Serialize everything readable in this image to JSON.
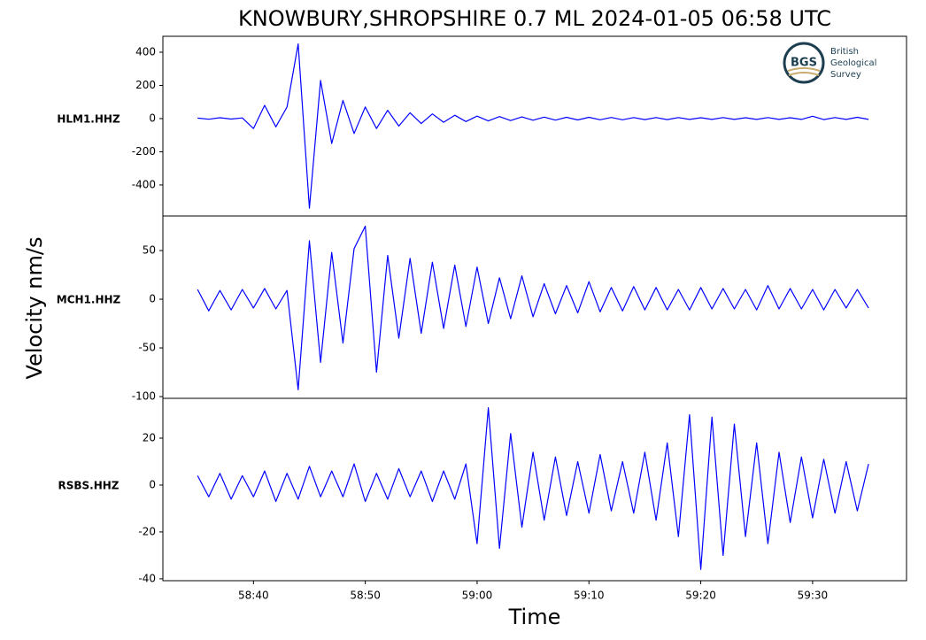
{
  "figure": {
    "title": "KNOWBURY,SHROPSHIRE 0.7 ML   2024-01-05 06:58 UTC",
    "xlabel": "Time",
    "ylabel": "Velocity nm/s",
    "logo": {
      "mark": "BGS",
      "lines": [
        "British",
        "Geological",
        "Survey"
      ]
    }
  },
  "chart_data": [
    {
      "type": "line",
      "name": "HLM1.HHZ",
      "color": "#0000ff",
      "x": [
        35,
        36,
        37,
        38,
        39,
        40,
        41,
        42,
        43,
        44,
        45,
        46,
        47,
        48,
        49,
        50,
        51,
        52,
        53,
        54,
        55,
        56,
        57,
        58,
        59,
        60,
        61,
        62,
        63,
        64,
        65,
        66,
        67,
        68,
        69,
        70,
        71,
        72,
        73,
        74,
        75,
        76,
        77,
        78,
        79,
        80,
        81,
        82,
        83,
        84,
        85,
        86,
        87,
        88,
        89,
        90,
        91,
        92,
        93,
        94,
        95
      ],
      "values": [
        3,
        -4,
        5,
        -3,
        4,
        -60,
        80,
        -50,
        70,
        450,
        -540,
        230,
        -150,
        110,
        -90,
        70,
        -60,
        50,
        -45,
        35,
        -30,
        28,
        -22,
        20,
        -18,
        15,
        -14,
        12,
        -12,
        10,
        -10,
        9,
        -9,
        8,
        -8,
        8,
        -7,
        7,
        -7,
        6,
        -6,
        6,
        -6,
        6,
        -5,
        5,
        -5,
        6,
        -5,
        5,
        -5,
        6,
        -5,
        5,
        -5,
        14,
        -6,
        6,
        -5,
        8,
        -5
      ],
      "xlim": [
        31.9,
        98.4
      ],
      "ylim": [
        -587,
        496
      ],
      "yticks": [
        400,
        200,
        0,
        -200,
        -400
      ]
    },
    {
      "type": "line",
      "name": "MCH1.HHZ",
      "color": "#0000ff",
      "x": [
        35,
        36,
        37,
        38,
        39,
        40,
        41,
        42,
        43,
        44,
        45,
        46,
        47,
        48,
        49,
        50,
        51,
        52,
        53,
        54,
        55,
        56,
        57,
        58,
        59,
        60,
        61,
        62,
        63,
        64,
        65,
        66,
        67,
        68,
        69,
        70,
        71,
        72,
        73,
        74,
        75,
        76,
        77,
        78,
        79,
        80,
        81,
        82,
        83,
        84,
        85,
        86,
        87,
        88,
        89,
        90,
        91,
        92,
        93,
        94,
        95
      ],
      "values": [
        10,
        -12,
        9,
        -11,
        10,
        -9,
        11,
        -10,
        9,
        -93,
        60,
        -65,
        48,
        -45,
        52,
        75,
        -75,
        45,
        -40,
        42,
        -35,
        38,
        -30,
        35,
        -28,
        33,
        -25,
        22,
        -20,
        24,
        -18,
        16,
        -15,
        14,
        -14,
        18,
        -13,
        12,
        -12,
        13,
        -11,
        12,
        -11,
        10,
        -11,
        12,
        -10,
        11,
        -10,
        10,
        -11,
        14,
        -10,
        11,
        -10,
        10,
        -11,
        10,
        -9,
        10,
        -9
      ],
      "xlim": [
        31.9,
        98.4
      ],
      "ylim": [
        -101.8,
        85.5
      ],
      "yticks": [
        50,
        0,
        -50,
        -100
      ]
    },
    {
      "type": "line",
      "name": "RSBS.HHZ",
      "color": "#0000ff",
      "x": [
        35,
        36,
        37,
        38,
        39,
        40,
        41,
        42,
        43,
        44,
        45,
        46,
        47,
        48,
        49,
        50,
        51,
        52,
        53,
        54,
        55,
        56,
        57,
        58,
        59,
        60,
        61,
        62,
        63,
        64,
        65,
        66,
        67,
        68,
        69,
        70,
        71,
        72,
        73,
        74,
        75,
        76,
        77,
        78,
        79,
        80,
        81,
        82,
        83,
        84,
        85,
        86,
        87,
        88,
        89,
        90,
        91,
        92,
        93,
        94,
        95
      ],
      "values": [
        4,
        -5,
        5,
        -6,
        4,
        -5,
        6,
        -7,
        5,
        -6,
        8,
        -5,
        6,
        -5,
        9,
        -7,
        5,
        -6,
        7,
        -5,
        6,
        -7,
        6,
        -6,
        9,
        -25,
        33,
        -27,
        22,
        -18,
        14,
        -15,
        12,
        -13,
        10,
        -12,
        13,
        -11,
        10,
        -12,
        14,
        -15,
        18,
        -22,
        30,
        -36,
        29,
        -30,
        26,
        -22,
        18,
        -25,
        14,
        -16,
        12,
        -14,
        11,
        -12,
        10,
        -11,
        9
      ],
      "xlim": [
        31.9,
        98.4
      ],
      "ylim": [
        -40.8,
        37
      ],
      "yticks": [
        20,
        0,
        -20,
        -40
      ],
      "xticks": [
        {
          "value": 40,
          "label": "58:40"
        },
        {
          "value": 50,
          "label": "58:50"
        },
        {
          "value": 60,
          "label": "59:00"
        },
        {
          "value": 70,
          "label": "59:10"
        },
        {
          "value": 80,
          "label": "59:20"
        },
        {
          "value": 90,
          "label": "59:30"
        }
      ]
    }
  ]
}
